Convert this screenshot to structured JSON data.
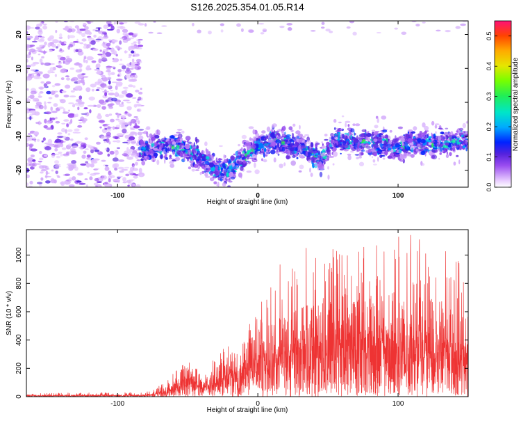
{
  "figure_title": "S126.2025.354.01.05.R14",
  "chart_data": [
    {
      "type": "heatmap",
      "title": "S126.2025.354.01.05.R14",
      "xlabel": "Height of straight line (km)",
      "ylabel": "Frequency (Hz)",
      "xlim": [
        -165,
        150
      ],
      "ylim": [
        -25,
        24
      ],
      "xticks": [
        -100,
        0,
        100
      ],
      "xtick_labels": [
        "-100",
        "0",
        "100"
      ],
      "yticks": [
        -20,
        -10,
        0,
        10,
        20
      ],
      "ytick_labels": [
        "-20",
        "-10",
        "0",
        "10",
        "20"
      ],
      "colorbar": {
        "label": "Normalized spectral amplitude",
        "min": 0.0,
        "max": 0.55,
        "ticks": [
          0.0,
          0.1,
          0.2,
          0.3,
          0.4,
          0.5
        ],
        "tick_labels": [
          "0.0",
          "0.1",
          "0.2",
          "0.3",
          "0.4",
          "0.5"
        ]
      },
      "band_center_hz": [
        {
          "x": -165,
          "f": 0
        },
        {
          "x": -85,
          "f": 0
        },
        {
          "x": -84,
          "f": -14
        },
        {
          "x": -60,
          "f": -13
        },
        {
          "x": -45,
          "f": -15
        },
        {
          "x": -30,
          "f": -20
        },
        {
          "x": -20,
          "f": -20
        },
        {
          "x": -5,
          "f": -14
        },
        {
          "x": 10,
          "f": -11
        },
        {
          "x": 30,
          "f": -13
        },
        {
          "x": 45,
          "f": -17
        },
        {
          "x": 55,
          "f": -11
        },
        {
          "x": 80,
          "f": -12
        },
        {
          "x": 100,
          "f": -13
        },
        {
          "x": 120,
          "f": -12
        },
        {
          "x": 150,
          "f": -11
        }
      ],
      "peak_amplitude": 0.3
    },
    {
      "type": "line",
      "xlabel": "Height of straight line (km)",
      "ylabel": "SNR (10 * v/v)",
      "xlim": [
        -165,
        150
      ],
      "ylim": [
        0,
        1180
      ],
      "xticks": [
        -100,
        0,
        100
      ],
      "xtick_labels": [
        "-100",
        "0",
        "100"
      ],
      "yticks": [
        0,
        200,
        400,
        600,
        800,
        1000
      ],
      "ytick_labels": [
        "0",
        "200",
        "400",
        "600",
        "800",
        "1000"
      ],
      "color": "#ee3333",
      "envelope": [
        {
          "x": -165,
          "typ": 8,
          "peak": 25
        },
        {
          "x": -80,
          "typ": 10,
          "peak": 30
        },
        {
          "x": -65,
          "typ": 40,
          "peak": 110
        },
        {
          "x": -55,
          "typ": 110,
          "peak": 220
        },
        {
          "x": -45,
          "typ": 150,
          "peak": 260
        },
        {
          "x": -40,
          "typ": 60,
          "peak": 120
        },
        {
          "x": -30,
          "typ": 120,
          "peak": 300
        },
        {
          "x": -15,
          "typ": 200,
          "peak": 420
        },
        {
          "x": 0,
          "typ": 280,
          "peak": 620
        },
        {
          "x": 20,
          "typ": 350,
          "peak": 1040
        },
        {
          "x": 50,
          "typ": 420,
          "peak": 1100
        },
        {
          "x": 80,
          "typ": 450,
          "peak": 1060
        },
        {
          "x": 100,
          "typ": 430,
          "peak": 1180
        },
        {
          "x": 130,
          "typ": 400,
          "peak": 1060
        },
        {
          "x": 150,
          "typ": 350,
          "peak": 950
        }
      ]
    }
  ]
}
